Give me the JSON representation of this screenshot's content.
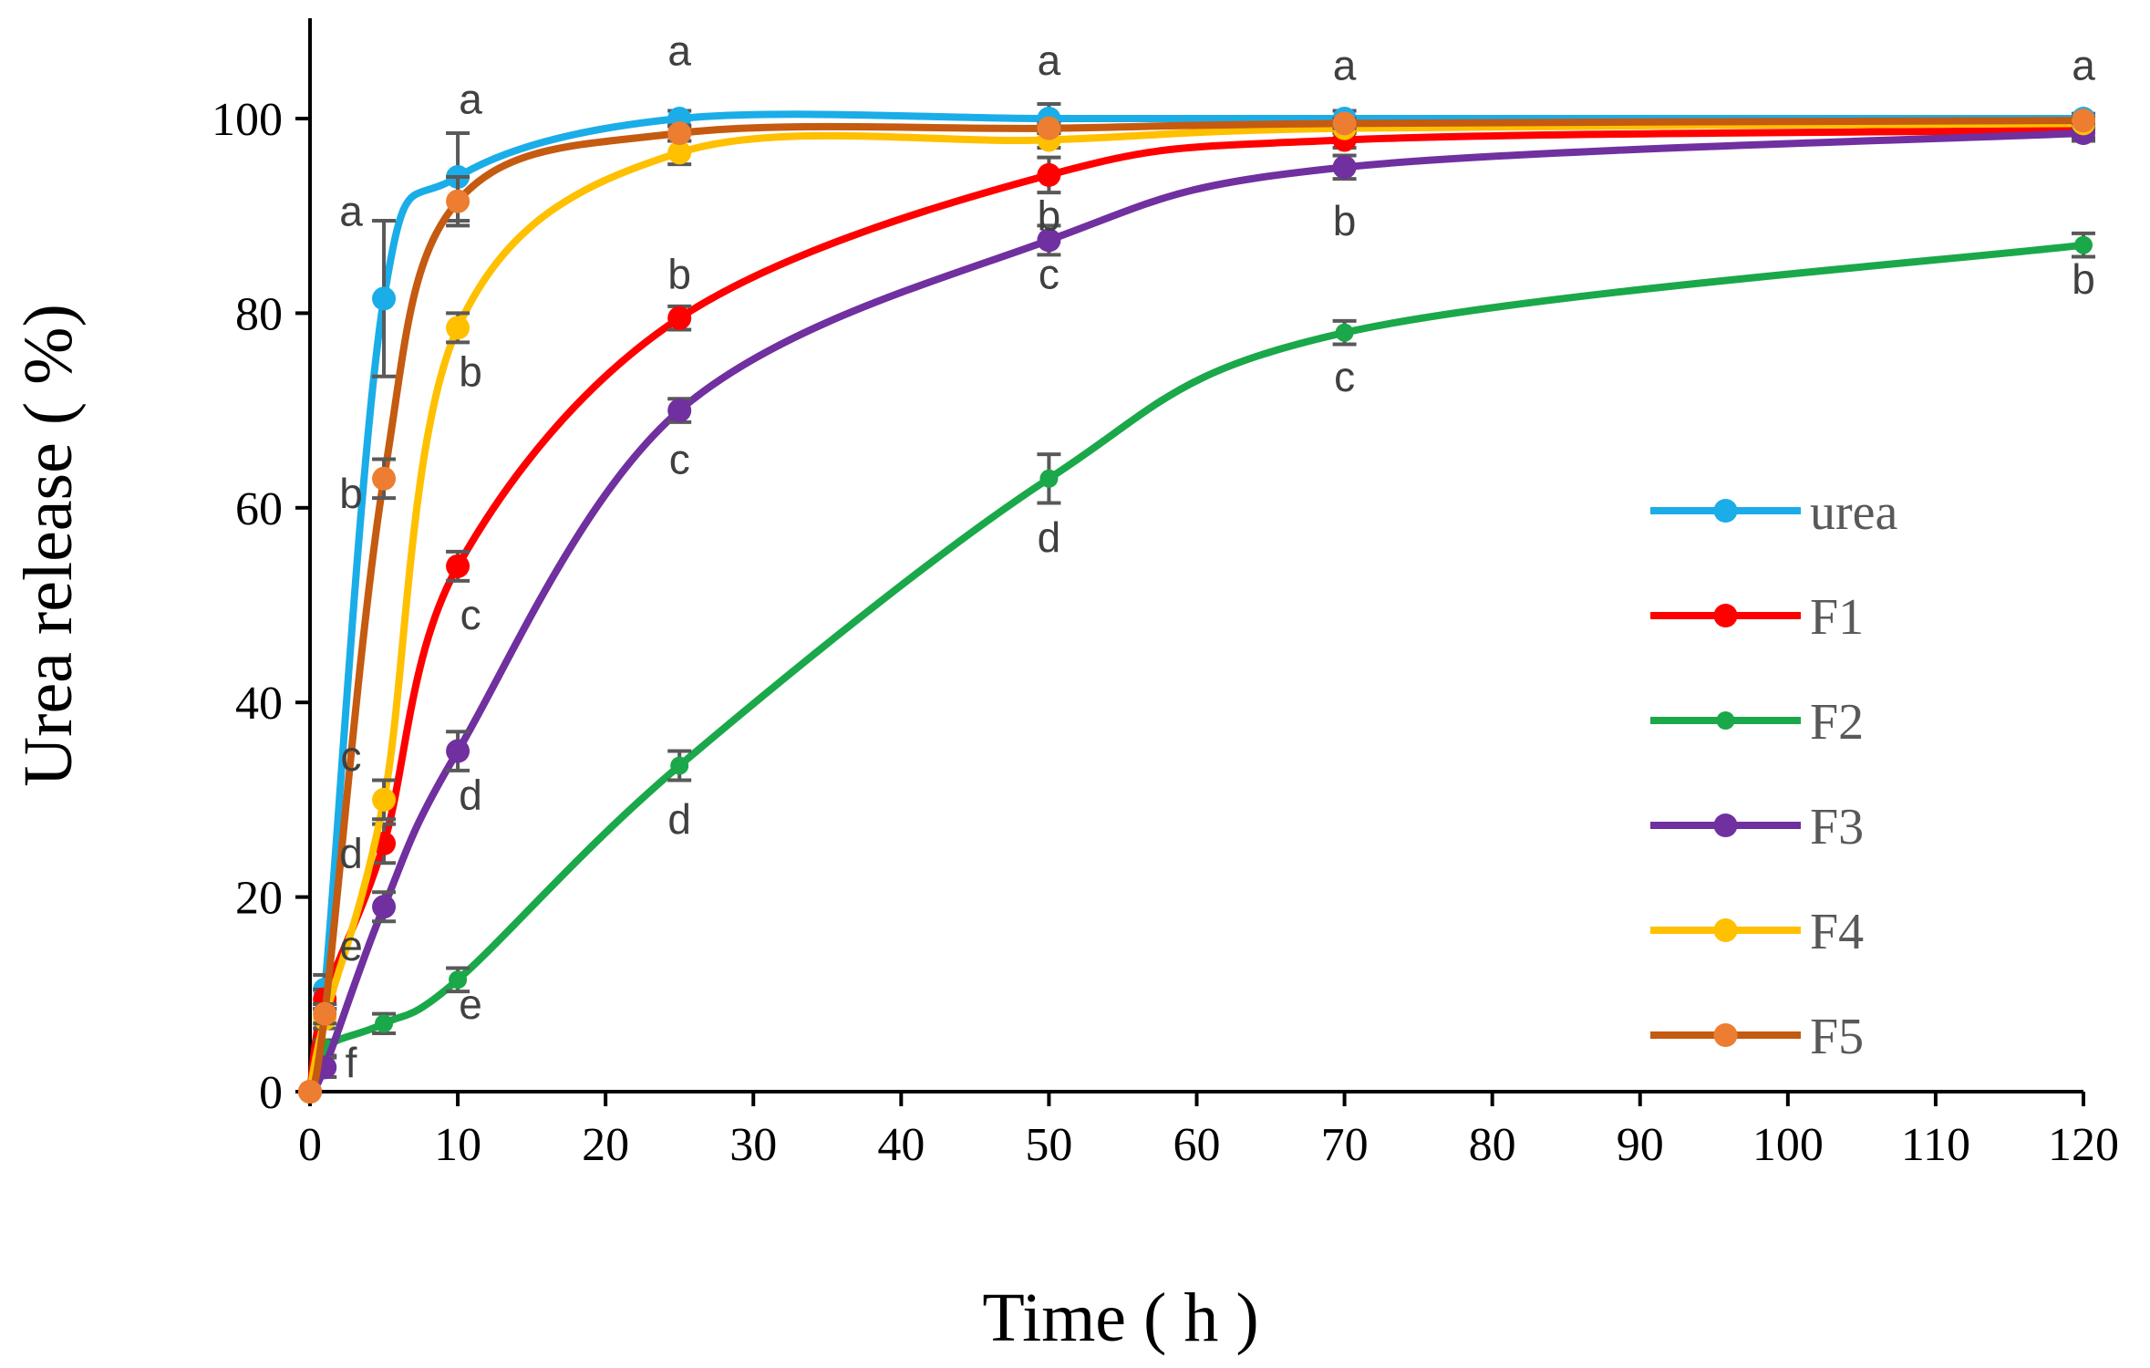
{
  "chart_data": {
    "type": "line",
    "title": "",
    "xlabel": "Time ( h )",
    "ylabel": "Urea release ( %)",
    "xlim": [
      0,
      120
    ],
    "ylim": [
      0,
      110
    ],
    "xticks": [
      0,
      10,
      20,
      30,
      40,
      50,
      60,
      70,
      80,
      90,
      100,
      110,
      120
    ],
    "yticks": [
      0,
      20,
      40,
      60,
      80,
      100
    ],
    "legend_position": "right",
    "grid": false,
    "x": [
      0,
      1,
      5,
      10,
      25,
      50,
      70,
      120
    ],
    "series": [
      {
        "name": "urea",
        "color": "#1AADE8",
        "values": [
          0,
          10.5,
          81.5,
          94,
          100,
          100,
          100,
          100
        ],
        "errors": [
          0,
          1.5,
          8,
          4.5,
          0.8,
          1.5,
          0.8,
          0.5
        ]
      },
      {
        "name": "F1",
        "color": "#FF0000",
        "values": [
          0,
          9.5,
          25.5,
          54,
          79.5,
          94.2,
          97.8,
          98.8
        ],
        "errors": [
          0,
          1,
          2,
          1.5,
          1.2,
          1.8,
          0.8,
          0.8
        ]
      },
      {
        "name": "F2",
        "color": "#1AA84A",
        "values": [
          0,
          4.5,
          7,
          11.5,
          33.5,
          63,
          78,
          87
        ],
        "errors": [
          0,
          0.8,
          1,
          1.2,
          1.5,
          2.5,
          1.2,
          1.2
        ]
      },
      {
        "name": "F3",
        "color": "#7030A0",
        "values": [
          0,
          2.5,
          19,
          35,
          70,
          87.5,
          95,
          98.5
        ],
        "errors": [
          0,
          1,
          1.5,
          2,
          1.2,
          1.5,
          1.2,
          0.8
        ]
      },
      {
        "name": "F4",
        "color": "#FFC000",
        "values": [
          0,
          7.5,
          30,
          78.5,
          96.5,
          97.8,
          99,
          99.5
        ],
        "errors": [
          0,
          1,
          2,
          1.5,
          1.2,
          0.8,
          0.5,
          0.5
        ]
      },
      {
        "name": "F5",
        "color": "#C55A11",
        "values": [
          0,
          8,
          63,
          91.5,
          98.5,
          99,
          99.5,
          99.8
        ],
        "errors": [
          0,
          1,
          2,
          2.5,
          0.8,
          0.5,
          0.5,
          0.3
        ]
      }
    ],
    "marker_color_F5": "#ED7D31",
    "significance_labels": [
      {
        "x": 5,
        "y": 89,
        "text": "a"
      },
      {
        "x": 10,
        "y": 100.5,
        "text": "a"
      },
      {
        "x": 25,
        "y": 105.5,
        "text": "a"
      },
      {
        "x": 50,
        "y": 104.5,
        "text": "a"
      },
      {
        "x": 70,
        "y": 104,
        "text": "a"
      },
      {
        "x": 120,
        "y": 104,
        "text": "a"
      },
      {
        "x": 5,
        "y": 60,
        "text": "b"
      },
      {
        "x": 10,
        "y": 72.5,
        "text": "b"
      },
      {
        "x": 25,
        "y": 82.5,
        "text": "b"
      },
      {
        "x": 50,
        "y": 88.5,
        "text": "b"
      },
      {
        "x": 70,
        "y": 88,
        "text": "b"
      },
      {
        "x": 120,
        "y": 82,
        "text": "b"
      },
      {
        "x": 5,
        "y": 33,
        "text": "c"
      },
      {
        "x": 10,
        "y": 47.5,
        "text": "c"
      },
      {
        "x": 25,
        "y": 63.5,
        "text": "c"
      },
      {
        "x": 50,
        "y": 82.5,
        "text": "c"
      },
      {
        "x": 70,
        "y": 72,
        "text": "c"
      },
      {
        "x": 5,
        "y": 23,
        "text": "d"
      },
      {
        "x": 10,
        "y": 29,
        "text": "d"
      },
      {
        "x": 25,
        "y": 26.5,
        "text": "d"
      },
      {
        "x": 50,
        "y": 55.5,
        "text": "d"
      },
      {
        "x": 5,
        "y": 13.5,
        "text": "e"
      },
      {
        "x": 10,
        "y": 7.5,
        "text": "e"
      },
      {
        "x": 5,
        "y": 1.5,
        "text": "f"
      }
    ]
  }
}
